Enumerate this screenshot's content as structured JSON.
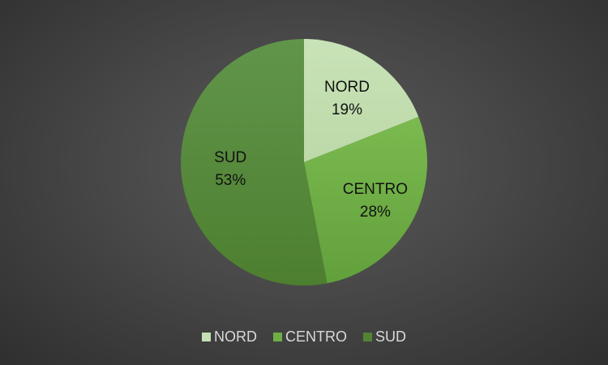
{
  "chart_data": {
    "type": "pie",
    "title": "",
    "categories": [
      "NORD",
      "CENTRO",
      "SUD"
    ],
    "values": [
      19,
      28,
      53
    ],
    "value_labels": [
      "19%",
      "28%",
      "53%"
    ],
    "colors": [
      "#c5e0b4",
      "#70ad47",
      "#548235"
    ],
    "legend_position": "bottom",
    "legend": {
      "items": [
        {
          "label": "NORD",
          "color": "#c5e0b4"
        },
        {
          "label": "CENTRO",
          "color": "#70ad47"
        },
        {
          "label": "SUD",
          "color": "#548235"
        }
      ]
    }
  }
}
